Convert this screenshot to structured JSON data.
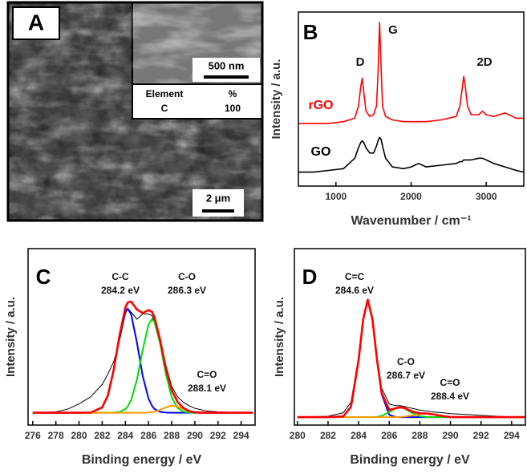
{
  "image_panel": {
    "label": "A",
    "scale_bars": [
      "500 nm",
      "2 μm"
    ],
    "table": {
      "header": [
        "Element",
        "%"
      ],
      "rows": [
        [
          "C",
          100
        ]
      ]
    }
  },
  "chart_data": [
    {
      "type": "line",
      "panel_label": "B",
      "x_label": "Wavenumber / cm⁻¹",
      "y_label": "Intensity / a.u.",
      "xlim": [
        500,
        3500
      ],
      "xticks": [
        1000,
        2000,
        3000
      ],
      "ylim": [
        0,
        10
      ],
      "annotations": [
        "D",
        "G",
        "2D"
      ],
      "x": [
        500,
        700,
        900,
        1100,
        1250,
        1300,
        1330,
        1350,
        1370,
        1400,
        1450,
        1500,
        1540,
        1560,
        1580,
        1600,
        1620,
        1660,
        1750,
        1900,
        2000,
        2100,
        2200,
        2400,
        2600,
        2650,
        2680,
        2700,
        2720,
        2750,
        2800,
        2900,
        2950,
        3000,
        3100,
        3250,
        3400,
        3500
      ],
      "series": [
        {
          "name": "rGO",
          "color": "#ff0000",
          "values": [
            3.6,
            3.6,
            3.6,
            3.7,
            3.9,
            4.6,
            5.7,
            6.2,
            5.4,
            4.3,
            4.0,
            4.1,
            4.6,
            6.5,
            9.4,
            7.0,
            4.6,
            4.0,
            3.8,
            3.7,
            3.7,
            3.7,
            3.7,
            3.8,
            4.0,
            4.6,
            5.6,
            6.3,
            5.8,
            4.6,
            4.1,
            4.1,
            4.3,
            4.1,
            4.0,
            4.2,
            3.9,
            3.9
          ]
        },
        {
          "name": "GO",
          "color": "#000000",
          "values": [
            0.8,
            0.8,
            0.9,
            1.0,
            1.6,
            2.2,
            2.5,
            2.6,
            2.5,
            2.2,
            1.9,
            1.9,
            2.3,
            2.6,
            2.8,
            2.7,
            2.3,
            1.6,
            1.1,
            1.0,
            1.1,
            1.3,
            1.1,
            1.2,
            1.3,
            1.4,
            1.4,
            1.5,
            1.5,
            1.5,
            1.5,
            1.6,
            1.6,
            1.5,
            1.3,
            1.1,
            0.9,
            0.8
          ]
        }
      ]
    },
    {
      "type": "line",
      "panel_label": "C",
      "x_label": "Binding energy / eV",
      "y_label": "Intensity / a.u.",
      "xlim": [
        275.6,
        295.2
      ],
      "xticks": [
        276,
        278,
        280,
        282,
        284,
        286,
        288,
        290,
        292,
        294
      ],
      "ylim": [
        0,
        10
      ],
      "annotations": [
        "C-C",
        "284.2 eV",
        "C-O",
        "286.3 eV",
        "C=O",
        "288.1 eV"
      ],
      "x": [
        276,
        278,
        279,
        280,
        281,
        282,
        282.5,
        283,
        283.5,
        284,
        284.2,
        284.5,
        285,
        285.5,
        286,
        286.3,
        286.5,
        287,
        287.5,
        288,
        288.5,
        289,
        289.5,
        290,
        291,
        292,
        294,
        295
      ],
      "series": [
        {
          "color": "#000000",
          "values": [
            0.7,
            0.75,
            0.9,
            1.2,
            1.6,
            2.3,
            2.9,
            3.6,
            4.8,
            6.3,
            6.6,
            6.4,
            6.0,
            6.3,
            6.3,
            6.2,
            5.9,
            4.9,
            3.4,
            2.2,
            1.6,
            1.3,
            1.1,
            0.95,
            0.8,
            0.75,
            0.7,
            0.7
          ]
        },
        {
          "color": "#0000ff",
          "values": [
            0.7,
            0.7,
            0.7,
            0.7,
            0.71,
            1.0,
            1.69,
            3.13,
            5.06,
            6.45,
            6.6,
            6.28,
            4.68,
            2.78,
            1.5,
            1.09,
            0.92,
            0.75,
            0.71,
            0.7,
            0.7,
            0.7,
            0.7,
            0.7,
            0.7,
            0.7,
            0.7,
            0.7
          ]
        },
        {
          "color": "#00dd00",
          "values": [
            0.7,
            0.7,
            0.7,
            0.7,
            0.7,
            0.7,
            0.7,
            0.71,
            0.74,
            0.9,
            1.05,
            1.42,
            2.57,
            4.27,
            5.71,
            6.0,
            5.87,
            4.62,
            2.88,
            1.59,
            0.97,
            0.76,
            0.71,
            0.7,
            0.7,
            0.7,
            0.7,
            0.7
          ]
        },
        {
          "color": "#ff9900",
          "values": [
            0.7,
            0.7,
            0.7,
            0.7,
            0.7,
            0.7,
            0.7,
            0.7,
            0.7,
            0.7,
            0.7,
            0.7,
            0.7,
            0.7,
            0.71,
            0.73,
            0.75,
            0.86,
            1.0,
            1.1,
            1.05,
            0.91,
            0.79,
            0.72,
            0.7,
            0.7,
            0.7,
            0.7
          ]
        },
        {
          "color": "#ff0000",
          "values": [
            0.7,
            0.7,
            0.7,
            0.7,
            0.71,
            1.0,
            1.69,
            3.14,
            5.1,
            6.65,
            6.95,
            7.0,
            6.55,
            6.35,
            6.52,
            6.42,
            6.14,
            4.83,
            3.19,
            1.99,
            1.32,
            0.97,
            0.8,
            0.72,
            0.7,
            0.7,
            0.7,
            0.7
          ]
        }
      ]
    },
    {
      "type": "line",
      "panel_label": "D",
      "x_label": "Binding energy / eV",
      "y_label": "Intensity / a.u.",
      "xlim": [
        279.8,
        294.9
      ],
      "xticks": [
        280,
        282,
        284,
        286,
        288,
        290,
        292,
        294
      ],
      "ylim": [
        0,
        10
      ],
      "annotations": [
        "C=C",
        "284.6 eV",
        "C-O",
        "286.7 eV",
        "C=O",
        "288.4 eV"
      ],
      "x": [
        280,
        282,
        283,
        283.5,
        284,
        284.3,
        284.6,
        284.9,
        285.2,
        285.5,
        286,
        286.4,
        286.7,
        287,
        287.5,
        288,
        288.4,
        288.8,
        289.5,
        290,
        291,
        292,
        293,
        294,
        294.9
      ],
      "series": [
        {
          "color": "#000000",
          "values": [
            0.45,
            0.5,
            0.7,
            1.3,
            3.9,
            6.1,
            7.0,
            6.0,
            3.9,
            2.1,
            1.2,
            1.1,
            1.1,
            1.05,
            0.95,
            0.85,
            0.8,
            0.75,
            0.7,
            0.65,
            0.6,
            0.55,
            0.5,
            0.47,
            0.45
          ]
        },
        {
          "color": "#0000ff",
          "values": [
            0.45,
            0.45,
            0.49,
            1.04,
            3.69,
            6.0,
            7.1,
            6.0,
            3.69,
            1.77,
            0.58,
            0.46,
            0.45,
            0.45,
            0.45,
            0.45,
            0.45,
            0.45,
            0.45,
            0.45,
            0.45,
            0.45,
            0.45,
            0.45,
            0.45
          ]
        },
        {
          "color": "#00dd00",
          "values": [
            0.45,
            0.45,
            0.45,
            0.45,
            0.45,
            0.45,
            0.45,
            0.45,
            0.47,
            0.52,
            0.73,
            0.94,
            1.0,
            0.94,
            0.68,
            0.5,
            0.46,
            0.45,
            0.45,
            0.45,
            0.45,
            0.45,
            0.45,
            0.45,
            0.45
          ]
        },
        {
          "color": "#ff9900",
          "values": [
            0.45,
            0.45,
            0.45,
            0.45,
            0.45,
            0.45,
            0.45,
            0.45,
            0.45,
            0.45,
            0.45,
            0.45,
            0.46,
            0.48,
            0.54,
            0.62,
            0.65,
            0.62,
            0.51,
            0.46,
            0.45,
            0.45,
            0.45,
            0.45,
            0.45
          ]
        },
        {
          "color": "#ff0000",
          "values": [
            0.45,
            0.45,
            0.49,
            1.04,
            3.69,
            6.0,
            7.1,
            6.01,
            3.71,
            1.84,
            0.86,
            0.95,
            1.01,
            0.97,
            0.77,
            0.67,
            0.66,
            0.62,
            0.51,
            0.46,
            0.45,
            0.45,
            0.45,
            0.45,
            0.45
          ]
        }
      ]
    }
  ]
}
